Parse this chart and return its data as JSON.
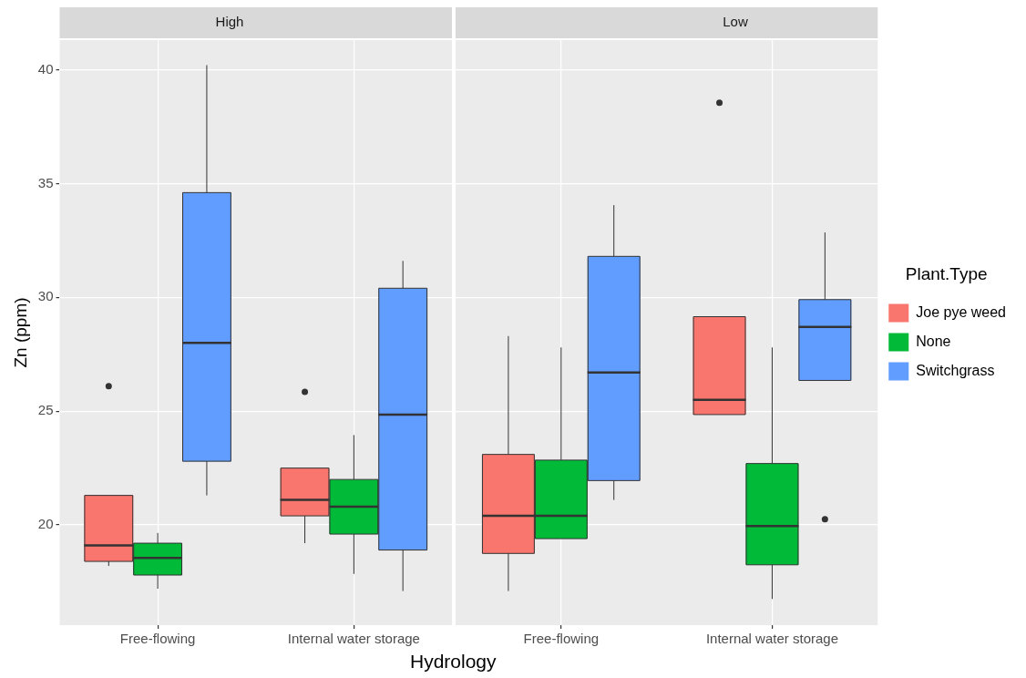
{
  "chart_data": [
    {
      "type": "box",
      "title": "High",
      "xlabel": "Hydrology",
      "ylabel": "Zn (ppm)",
      "categories": [
        "Free-flowing",
        "Internal water storage"
      ],
      "ylim": [
        15.6,
        41.3
      ],
      "yticks": [
        20,
        25,
        30,
        35,
        40
      ],
      "grid": true,
      "legend": false,
      "series": [
        {
          "color": "#f8766d",
          "boxes": [
            {
              "low": 18.2,
              "q1": 18.4,
              "median": 19.1,
              "q3": 21.3,
              "high": 21.3,
              "outliers": [
                26.1
              ]
            },
            {
              "low": 19.2,
              "q1": 20.4,
              "median": 21.1,
              "q3": 22.5,
              "high": 22.5,
              "outliers": [
                25.85
              ]
            }
          ]
        },
        {
          "color": "#00ba38",
          "boxes": [
            {
              "low": 17.2,
              "q1": 17.8,
              "median": 18.55,
              "q3": 19.2,
              "high": 19.65
            },
            {
              "low": 17.85,
              "q1": 19.6,
              "median": 20.8,
              "q3": 22.0,
              "high": 23.95
            }
          ]
        },
        {
          "color": "#619cff",
          "boxes": [
            {
              "low": 21.3,
              "q1": 22.8,
              "median": 28.0,
              "q3": 34.6,
              "high": 40.2
            },
            {
              "low": 17.1,
              "q1": 18.9,
              "median": 24.85,
              "q3": 30.4,
              "high": 31.6
            }
          ]
        }
      ]
    },
    {
      "type": "box",
      "title": "Low",
      "legend_title": "Plant.Type",
      "categories": [
        "Free-flowing",
        "Internal water storage"
      ],
      "ylim": [
        15.6,
        41.3
      ],
      "yticks": [
        20,
        25,
        30,
        35,
        40
      ],
      "grid": true,
      "legend": "right",
      "tick_labels": "x",
      "series": [
        {
          "name": "Joe pye weed",
          "color": "#f8766d",
          "boxes": [
            {
              "low": 17.1,
              "q1": 18.75,
              "median": 20.4,
              "q3": 23.1,
              "high": 28.3
            },
            {
              "low": 24.85,
              "q1": 24.85,
              "median": 25.5,
              "q3": 29.15,
              "high": 29.15,
              "outliers": [
                38.55
              ]
            }
          ]
        },
        {
          "name": "None",
          "color": "#00ba38",
          "boxes": [
            {
              "low": 19.4,
              "q1": 19.4,
              "median": 20.4,
              "q3": 22.85,
              "high": 27.8
            },
            {
              "low": 16.75,
              "q1": 18.25,
              "median": 19.95,
              "q3": 22.7,
              "high": 27.8
            }
          ]
        },
        {
          "name": "Switchgrass",
          "color": "#619cff",
          "boxes": [
            {
              "low": 21.1,
              "q1": 21.95,
              "median": 26.7,
              "q3": 31.8,
              "high": 34.05
            },
            {
              "low": 26.35,
              "q1": 26.35,
              "median": 28.7,
              "q3": 29.9,
              "high": 32.85,
              "outliers": [
                20.25
              ]
            }
          ]
        }
      ]
    }
  ]
}
